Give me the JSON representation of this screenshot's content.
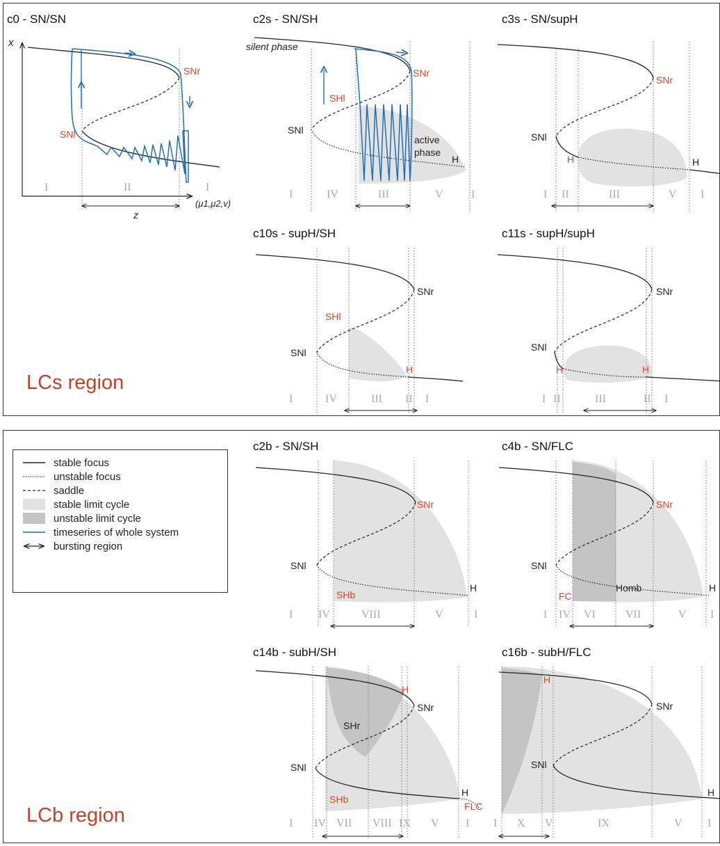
{
  "top_region": {
    "label": "LCs region"
  },
  "bottom_region": {
    "label": "LCb region"
  },
  "panels": {
    "c0": {
      "title": "c0 - SN/SN",
      "axis_x": "x",
      "axis_z": "z",
      "axis_param": "(μ1,μ2,v)",
      "snr": "SNr",
      "snl": "SNl",
      "regions": [
        "I",
        "II",
        "I"
      ]
    },
    "c2s": {
      "title": "c2s - SN/SH",
      "silent": "silent phase",
      "active1": "active",
      "active2": "phase",
      "snr": "SNr",
      "snl": "SNl",
      "sh": "SHl",
      "h": "H",
      "regions": [
        "I",
        "IV",
        "III",
        "V",
        "I"
      ]
    },
    "c3s": {
      "title": "c3s - SN/supH",
      "snr": "SNr",
      "snl": "SNl",
      "h1": "H",
      "h2": "H",
      "regions": [
        "I",
        "II",
        "III",
        "V",
        "I"
      ]
    },
    "c10s": {
      "title": "c10s - supH/SH",
      "snr": "SNr",
      "snl": "SNl",
      "sh": "SHl",
      "h": "H",
      "regions": [
        "I",
        "IV",
        "III",
        "II",
        "I"
      ]
    },
    "c11s": {
      "title": "c11s - supH/supH",
      "snr": "SNr",
      "snl": "SNl",
      "h1": "H",
      "h2": "H",
      "regions": [
        "I",
        "II",
        "III",
        "II",
        "I"
      ]
    },
    "c2b": {
      "title": "c2b - SN/SH",
      "snr": "SNr",
      "snl": "SNl",
      "shb": "SHb",
      "h": "H",
      "regions": [
        "I",
        "IV",
        "VIII",
        "V",
        "I"
      ]
    },
    "c4b": {
      "title": "c4b - SN/FLC",
      "snr": "SNr",
      "snl": "SNl",
      "fc": "FC",
      "hom": "Homb",
      "h": "H",
      "regions": [
        "I",
        "IV",
        "VI",
        "VII",
        "V",
        "I"
      ]
    },
    "c14b": {
      "title": "c14b - subH/SH",
      "snr": "SNr",
      "snl": "SNl",
      "shr": "SHr",
      "shb": "SHb",
      "h_red": "H",
      "h": "H",
      "flc": "FLC",
      "regions": [
        "I",
        "IV",
        "VII",
        "VIII",
        "IX",
        "V",
        "I"
      ]
    },
    "c16b": {
      "title": "c16b - subH/FLC",
      "snr": "SNr",
      "snl": "SNl",
      "h_red": "H",
      "h": "H",
      "regions": [
        "I",
        "X",
        "V",
        "IX",
        "V",
        "I"
      ]
    }
  },
  "legend": {
    "items": [
      {
        "label": "stable focus",
        "kind": "solid"
      },
      {
        "label": "unstable focus",
        "kind": "dotted"
      },
      {
        "label": "saddle",
        "kind": "dashed"
      },
      {
        "label": "stable limit cycle",
        "kind": "light-box"
      },
      {
        "label": "unstable limit cycle",
        "kind": "dark-box"
      },
      {
        "label": "timeseries of whole system",
        "kind": "blue-line"
      },
      {
        "label": "bursting region",
        "kind": "double-arrow"
      }
    ]
  },
  "colors": {
    "red": "#d6452e",
    "blue": "#1f6fb4",
    "stable_lc": "#e2e2e2",
    "unstable_lc": "#c4c4c4",
    "roman": "#aaaaaa"
  }
}
